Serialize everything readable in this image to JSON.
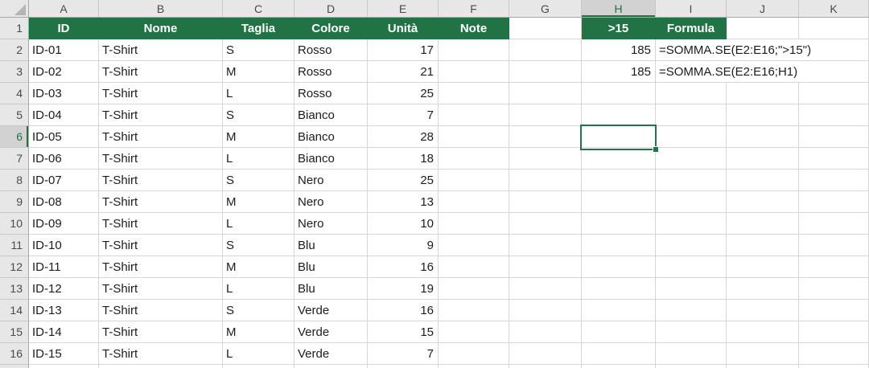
{
  "selection": {
    "cell": "H6",
    "column": "H",
    "row": 6
  },
  "colors": {
    "header_fill_green": "#217346",
    "selection_green": "#217346",
    "col_header_bg": "#e7e7e7",
    "selected_header_bg": "#d2d2d2",
    "gridline": "#d6d6d6",
    "header_text_white": "#ffffff"
  },
  "column_letters": [
    "A",
    "B",
    "C",
    "D",
    "E",
    "F",
    "G",
    "H",
    "I",
    "J",
    "K"
  ],
  "row_numbers": [
    1,
    2,
    3,
    4,
    5,
    6,
    7,
    8,
    9,
    10,
    11,
    12,
    13,
    14,
    15,
    16
  ],
  "table": {
    "column_headers": {
      "A": "ID",
      "B": "Nome",
      "C": "Taglia",
      "D": "Colore",
      "E": "Unità",
      "F": "Note",
      "G": "",
      "H": ">15",
      "I": "Formula",
      "J": "",
      "K": ""
    },
    "green_header_columns": [
      "A",
      "B",
      "C",
      "D",
      "E",
      "F",
      "H",
      "I"
    ],
    "rows": [
      {
        "row": 2,
        "id": "ID-01",
        "nome": "T-Shirt",
        "taglia": "S",
        "colore": "Rosso",
        "unita": 17,
        "h_value": 185,
        "i_formula": "=SOMMA.SE(E2:E16;\">15\")"
      },
      {
        "row": 3,
        "id": "ID-02",
        "nome": "T-Shirt",
        "taglia": "M",
        "colore": "Rosso",
        "unita": 21,
        "h_value": 185,
        "i_formula": "=SOMMA.SE(E2:E16;H1)"
      },
      {
        "row": 4,
        "id": "ID-03",
        "nome": "T-Shirt",
        "taglia": "L",
        "colore": "Rosso",
        "unita": 25
      },
      {
        "row": 5,
        "id": "ID-04",
        "nome": "T-Shirt",
        "taglia": "S",
        "colore": "Bianco",
        "unita": 7
      },
      {
        "row": 6,
        "id": "ID-05",
        "nome": "T-Shirt",
        "taglia": "M",
        "colore": "Bianco",
        "unita": 28
      },
      {
        "row": 7,
        "id": "ID-06",
        "nome": "T-Shirt",
        "taglia": "L",
        "colore": "Bianco",
        "unita": 18
      },
      {
        "row": 8,
        "id": "ID-07",
        "nome": "T-Shirt",
        "taglia": "S",
        "colore": "Nero",
        "unita": 25
      },
      {
        "row": 9,
        "id": "ID-08",
        "nome": "T-Shirt",
        "taglia": "M",
        "colore": "Nero",
        "unita": 13
      },
      {
        "row": 10,
        "id": "ID-09",
        "nome": "T-Shirt",
        "taglia": "L",
        "colore": "Nero",
        "unita": 10
      },
      {
        "row": 11,
        "id": "ID-10",
        "nome": "T-Shirt",
        "taglia": "S",
        "colore": "Blu",
        "unita": 9
      },
      {
        "row": 12,
        "id": "ID-11",
        "nome": "T-Shirt",
        "taglia": "M",
        "colore": "Blu",
        "unita": 16
      },
      {
        "row": 13,
        "id": "ID-12",
        "nome": "T-Shirt",
        "taglia": "L",
        "colore": "Blu",
        "unita": 19
      },
      {
        "row": 14,
        "id": "ID-13",
        "nome": "T-Shirt",
        "taglia": "S",
        "colore": "Verde",
        "unita": 16
      },
      {
        "row": 15,
        "id": "ID-14",
        "nome": "T-Shirt",
        "taglia": "M",
        "colore": "Verde",
        "unita": 15
      },
      {
        "row": 16,
        "id": "ID-15",
        "nome": "T-Shirt",
        "taglia": "L",
        "colore": "Verde",
        "unita": 7
      }
    ]
  }
}
